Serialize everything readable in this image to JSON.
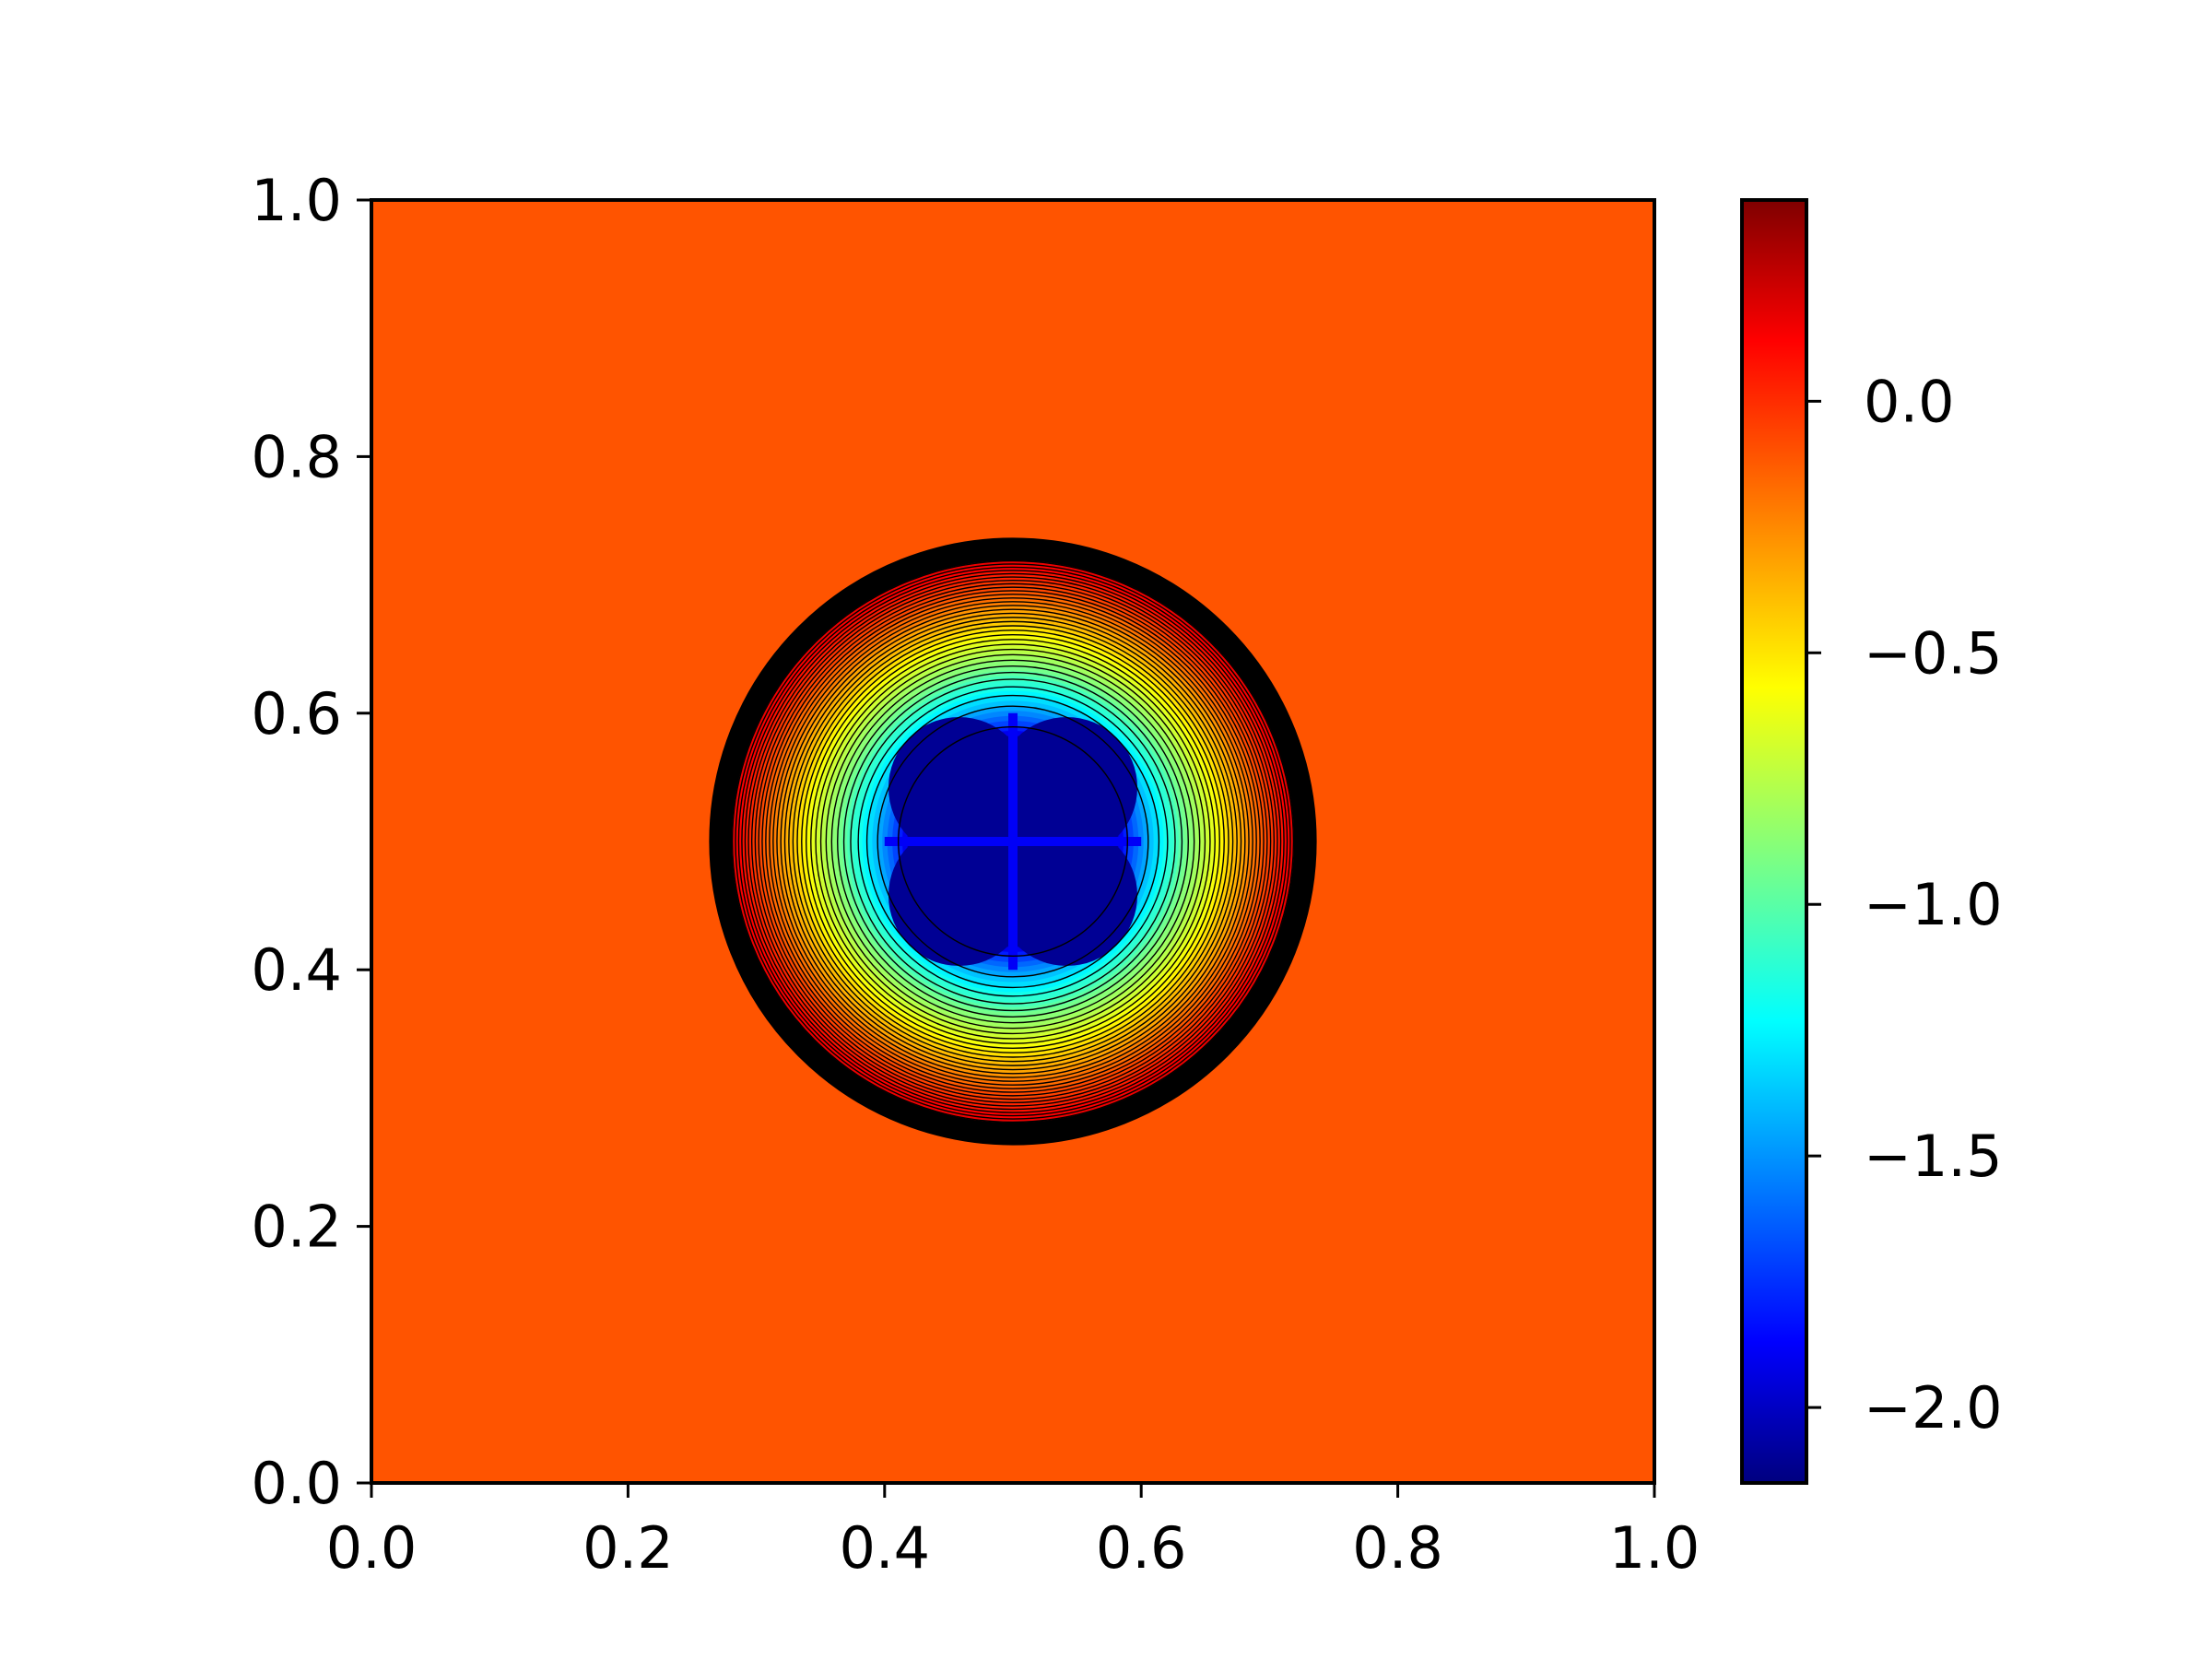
{
  "chart_data": {
    "type": "heatmap",
    "subtype": "filled-contour",
    "title": "",
    "xlabel": "",
    "ylabel": "",
    "xlim": [
      0.0,
      1.0
    ],
    "ylim": [
      0.0,
      1.0
    ],
    "x_ticks": [
      0.0,
      0.2,
      0.4,
      0.6,
      0.8,
      1.0
    ],
    "y_ticks": [
      0.0,
      0.2,
      0.4,
      0.6,
      0.8,
      1.0
    ],
    "x_tick_labels": [
      "0.0",
      "0.2",
      "0.4",
      "0.6",
      "0.8",
      "1.0"
    ],
    "y_tick_labels": [
      "0.0",
      "0.2",
      "0.4",
      "0.6",
      "0.8",
      "1.0"
    ],
    "colormap": "jet",
    "grid": false,
    "colorbar": {
      "range": [
        -2.15,
        0.4
      ],
      "ticks": [
        0.0,
        -0.5,
        -1.0,
        -1.5,
        -2.0
      ],
      "tick_labels": [
        "0.0",
        "−0.5",
        "−1.0",
        "−1.5",
        "−2.0"
      ],
      "placement": "right"
    },
    "field": {
      "background_value": -0.03,
      "center": [
        0.5,
        0.5
      ],
      "outer_radius": 0.235,
      "core_min_value": -2.05,
      "core_radius": 0.1,
      "contour_line_color": "#000000"
    }
  }
}
